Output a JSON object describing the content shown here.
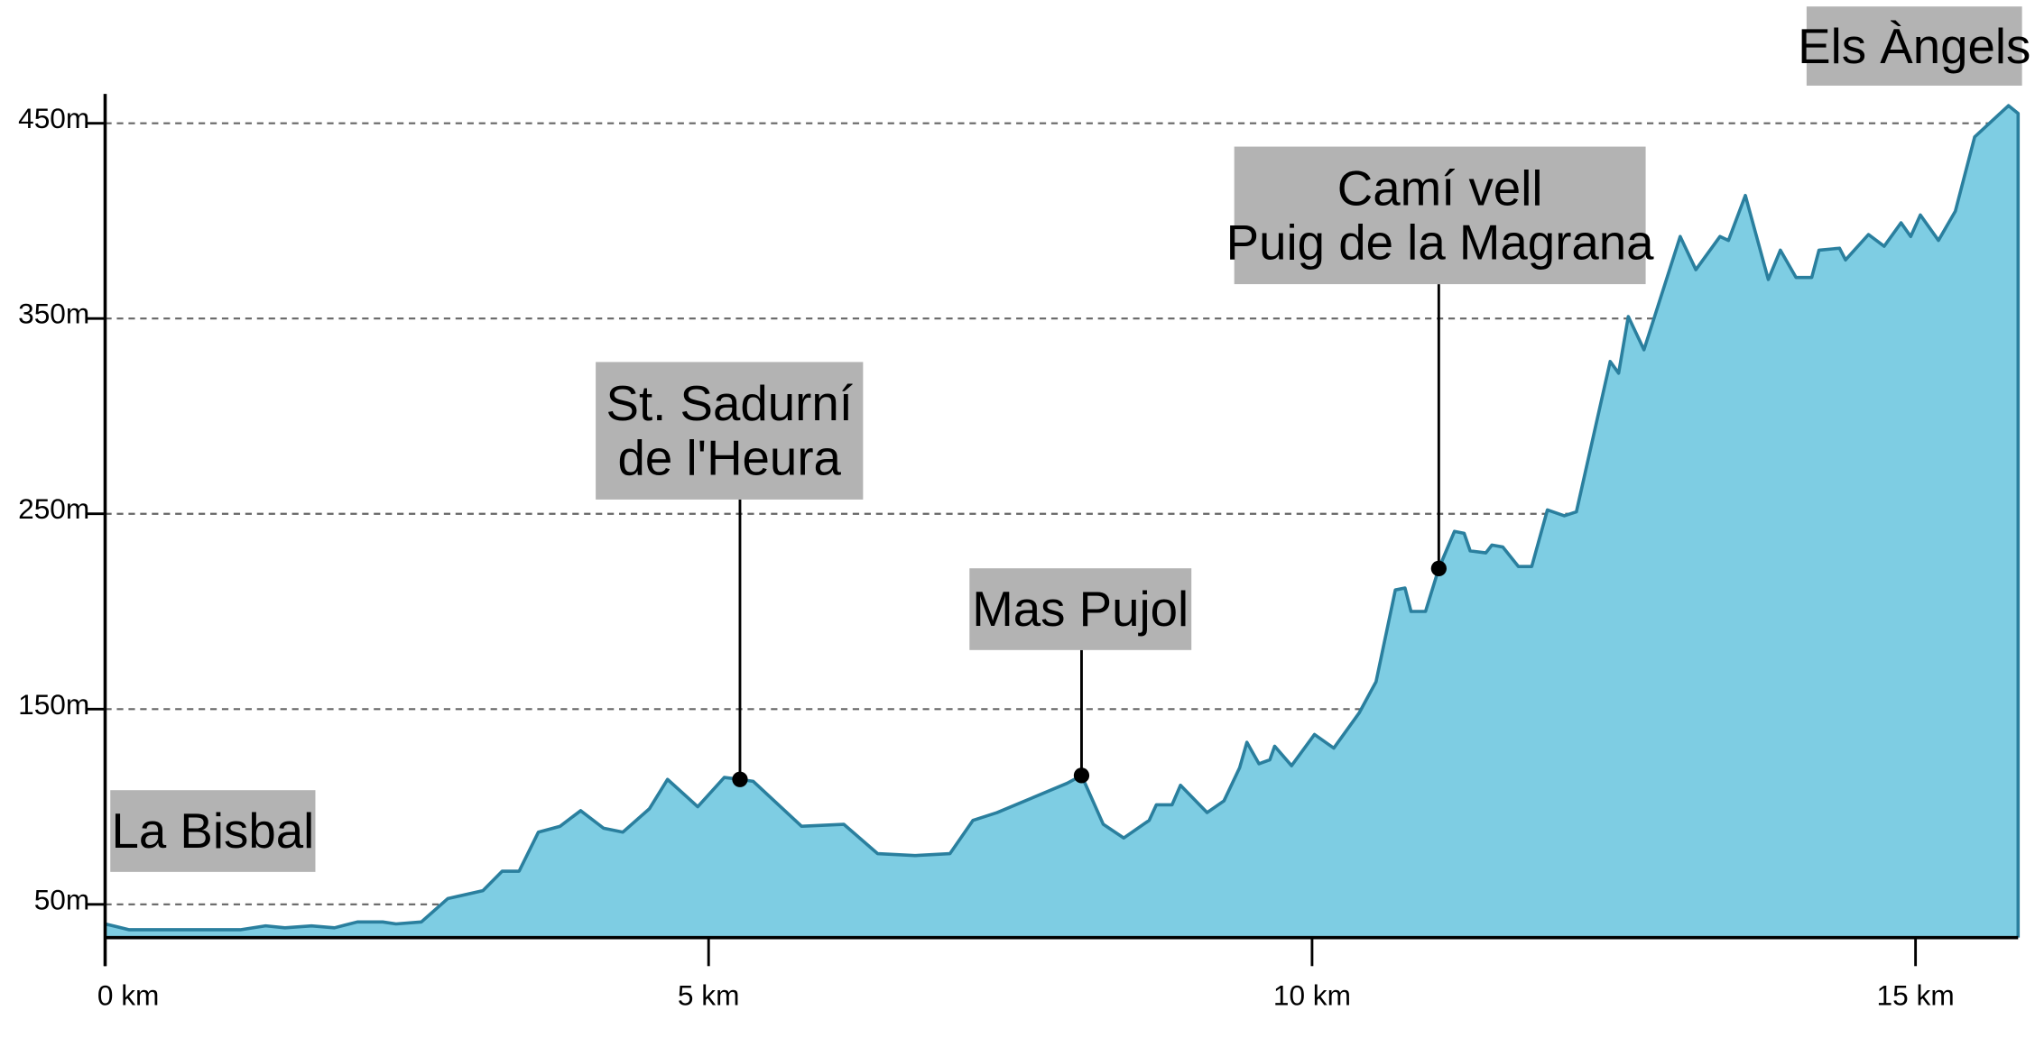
{
  "chart_data": {
    "type": "area",
    "x": [
      0,
      0.2,
      0.63,
      0.85,
      1.12,
      1.33,
      1.49,
      1.71,
      1.9,
      2.09,
      2.3,
      2.41,
      2.62,
      2.84,
      3.13,
      3.29,
      3.43,
      3.59,
      3.77,
      3.94,
      4.13,
      4.29,
      4.51,
      4.66,
      4.91,
      5.13,
      5.26,
      5.37,
      5.77,
      6.12,
      6.4,
      6.71,
      7.0,
      7.19,
      7.39,
      7.97,
      8.09,
      8.27,
      8.44,
      8.65,
      8.71,
      8.84,
      8.91,
      9.13,
      9.27,
      9.4,
      9.46,
      9.56,
      9.65,
      9.69,
      9.83,
      10.02,
      10.18,
      10.39,
      10.53,
      10.69,
      10.77,
      10.82,
      10.94,
      11.05,
      11.18,
      11.26,
      11.31,
      11.44,
      11.49,
      11.58,
      11.71,
      11.82,
      11.95,
      12.09,
      12.19,
      12.47,
      12.54,
      12.62,
      12.75,
      13.05,
      13.18,
      13.38,
      13.45,
      13.59,
      13.78,
      13.88,
      14.01,
      14.14,
      14.2,
      14.37,
      14.42,
      14.61,
      14.74,
      14.88,
      14.96,
      15.04,
      15.19,
      15.33,
      15.49,
      15.77,
      15.85
    ],
    "values": [
      40,
      37,
      37,
      37,
      37,
      39,
      38,
      39,
      38,
      41,
      41,
      40,
      41,
      53,
      57,
      67,
      67,
      87,
      90,
      98,
      89,
      87,
      99,
      114,
      100,
      115,
      114,
      113,
      90,
      91,
      76,
      75,
      76,
      93,
      97,
      112,
      116,
      91,
      84,
      93,
      101,
      101,
      111,
      97,
      103,
      120,
      133,
      122,
      124,
      131,
      121,
      137,
      130,
      148,
      164,
      211,
      212,
      200,
      200,
      222,
      241,
      240,
      231,
      230,
      234,
      233,
      223,
      223,
      252,
      249,
      251,
      328,
      322,
      351,
      334,
      392,
      375,
      392,
      390,
      413,
      370,
      385,
      371,
      371,
      385,
      386,
      380,
      393,
      387,
      399,
      392,
      403,
      390,
      405,
      443,
      459,
      455
    ],
    "color": "#7ecde3",
    "line_color": "#2a7f9e",
    "xlim": [
      0,
      15.85
    ],
    "ylim": [
      33,
      465
    ],
    "xticks": [
      {
        "value": 0,
        "label": "0 km"
      },
      {
        "value": 5,
        "label": "5 km"
      },
      {
        "value": 10,
        "label": "10 km"
      },
      {
        "value": 15,
        "label": "15 km"
      }
    ],
    "yticks": [
      {
        "value": 50,
        "label": "50m"
      },
      {
        "value": 150,
        "label": "150m"
      },
      {
        "value": 250,
        "label": "250m"
      },
      {
        "value": 350,
        "label": "350m"
      },
      {
        "value": 450,
        "label": "450m"
      }
    ],
    "grid": true,
    "annotations": [
      {
        "lines": [
          "La Bisbal"
        ]
      },
      {
        "lines": [
          "St. Sadurní",
          "de l'Heura"
        ],
        "x": 5.26,
        "y": 114
      },
      {
        "lines": [
          "Mas Pujol"
        ],
        "x": 8.09,
        "y": 116
      },
      {
        "lines": [
          "Camí vell",
          "Puig de la Magrana"
        ],
        "x": 11.05,
        "y": 222
      },
      {
        "lines": [
          "Els Àngels"
        ]
      }
    ]
  }
}
